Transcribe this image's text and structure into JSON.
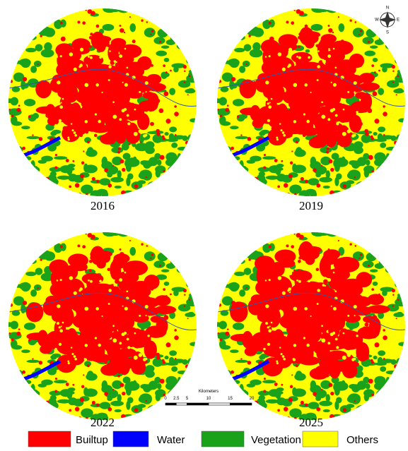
{
  "maps": [
    {
      "year": "2016"
    },
    {
      "year": "2019"
    },
    {
      "year": "2022"
    },
    {
      "year": "2025"
    }
  ],
  "legend": [
    {
      "label": "Builtup",
      "color": "#ff0000"
    },
    {
      "label": "Water",
      "color": "#0000ff"
    },
    {
      "label": "Vegetation",
      "color": "#1aa31a"
    },
    {
      "label": "Others",
      "color": "#ffff00"
    }
  ],
  "scale_bar": {
    "title": "Kilometers",
    "ticks": [
      0,
      2.5,
      5,
      10,
      15,
      20
    ]
  },
  "compass": {
    "n": "N",
    "e": "E",
    "s": "S",
    "w": "W"
  }
}
